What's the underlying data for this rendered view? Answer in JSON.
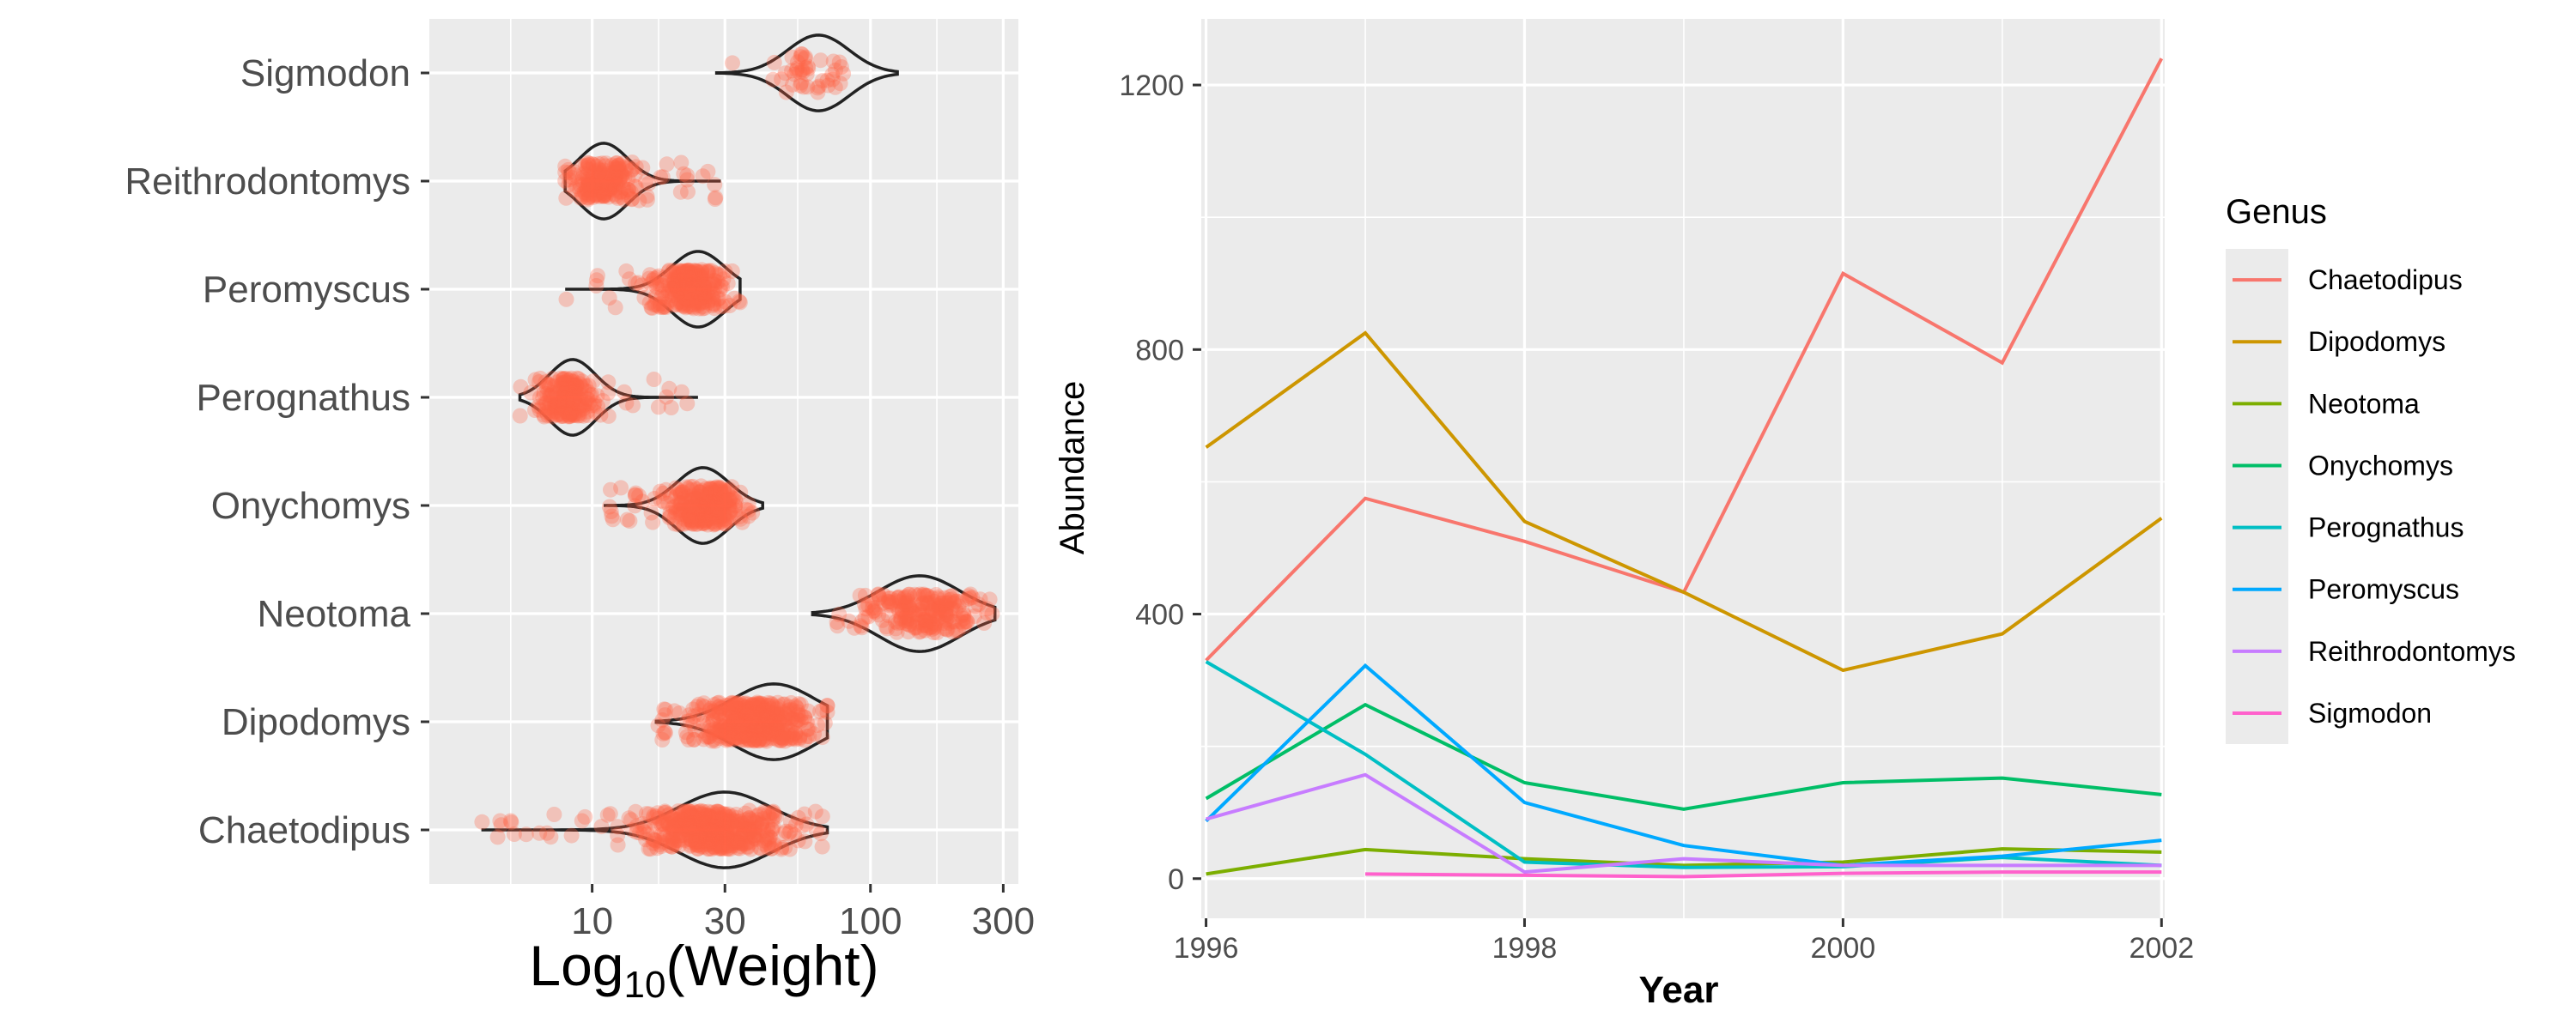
{
  "chart_data": [
    {
      "type": "violin-jitter",
      "orientation": "horizontal",
      "x_scale": "log10",
      "xlabel_main": "Log",
      "xlabel_sub": "10",
      "xlabel_tail": "(Weight)",
      "xlim": [
        2.6,
        340
      ],
      "x_ticks": [
        10,
        30,
        100,
        300
      ],
      "x_tick_labels": [
        "10",
        "30",
        "100",
        "300"
      ],
      "categories": [
        "Sigmodon",
        "Reithrodontomys",
        "Peromyscus",
        "Perognathus",
        "Onychomys",
        "Neotoma",
        "Dipodomys",
        "Chaetodipus"
      ],
      "point_color": "#FF6347",
      "violin_color": "#222222",
      "panel_background": "#EBEBEB",
      "grid": true,
      "groups": [
        {
          "name": "Sigmodon",
          "min": 28,
          "max": 125,
          "core_low": 40,
          "core_high": 90,
          "mode": 65,
          "n": 45
        },
        {
          "name": "Reithrodontomys",
          "min": 8,
          "max": 29,
          "core_low": 8,
          "core_high": 15,
          "mode": 11,
          "n": 200
        },
        {
          "name": "Peromyscus",
          "min": 8,
          "max": 34,
          "core_low": 16,
          "core_high": 32,
          "mode": 24,
          "n": 260
        },
        {
          "name": "Perognathus",
          "min": 5.5,
          "max": 24,
          "core_low": 6,
          "core_high": 11,
          "mode": 8.5,
          "n": 200
        },
        {
          "name": "Onychomys",
          "min": 11,
          "max": 41,
          "core_low": 18,
          "core_high": 36,
          "mode": 25,
          "n": 260
        },
        {
          "name": "Neotoma",
          "min": 62,
          "max": 280,
          "core_low": 90,
          "core_high": 260,
          "mode": 150,
          "n": 220
        },
        {
          "name": "Dipodomys",
          "min": 17,
          "max": 70,
          "core_low": 22,
          "core_high": 65,
          "mode": 45,
          "n": 420
        },
        {
          "name": "Chaetodipus",
          "min": 4,
          "max": 70,
          "core_low": 15,
          "core_high": 50,
          "mode": 30,
          "n": 520
        }
      ]
    },
    {
      "type": "line",
      "xlabel": "Year",
      "ylabel": "Abundance",
      "xlim": [
        1995.97,
        2002.02
      ],
      "ylim": [
        -60,
        1300
      ],
      "x_ticks": [
        1996,
        1998,
        2000,
        2002
      ],
      "y_ticks": [
        0,
        400,
        800,
        1200
      ],
      "panel_background": "#EBEBEB",
      "grid": true,
      "legend_title": "Genus",
      "legend_position": "right",
      "x": [
        1996,
        1997,
        1998,
        1999,
        2000,
        2001,
        2002
      ],
      "series": [
        {
          "name": "Chaetodipus",
          "color": "#F8766D",
          "values": [
            330,
            575,
            510,
            433,
            915,
            780,
            1240
          ]
        },
        {
          "name": "Dipodomys",
          "color": "#CD9600",
          "values": [
            652,
            825,
            540,
            433,
            315,
            370,
            545
          ]
        },
        {
          "name": "Neotoma",
          "color": "#7CAE00",
          "values": [
            7,
            44,
            30,
            20,
            25,
            45,
            40
          ]
        },
        {
          "name": "Onychomys",
          "color": "#00BE67",
          "values": [
            121,
            263,
            145,
            105,
            145,
            152,
            127
          ]
        },
        {
          "name": "Perognathus",
          "color": "#00BFC4",
          "values": [
            328,
            188,
            25,
            17,
            18,
            32,
            20
          ]
        },
        {
          "name": "Peromyscus",
          "color": "#00A9FF",
          "values": [
            87,
            322,
            115,
            50,
            20,
            34,
            58
          ]
        },
        {
          "name": "Reithrodontomys",
          "color": "#C77CFF",
          "values": [
            90,
            157,
            10,
            30,
            20,
            20,
            20
          ]
        },
        {
          "name": "Sigmodon",
          "color": "#FF61CC",
          "values": [
            null,
            7,
            5,
            3,
            8,
            10,
            10
          ]
        }
      ]
    }
  ]
}
